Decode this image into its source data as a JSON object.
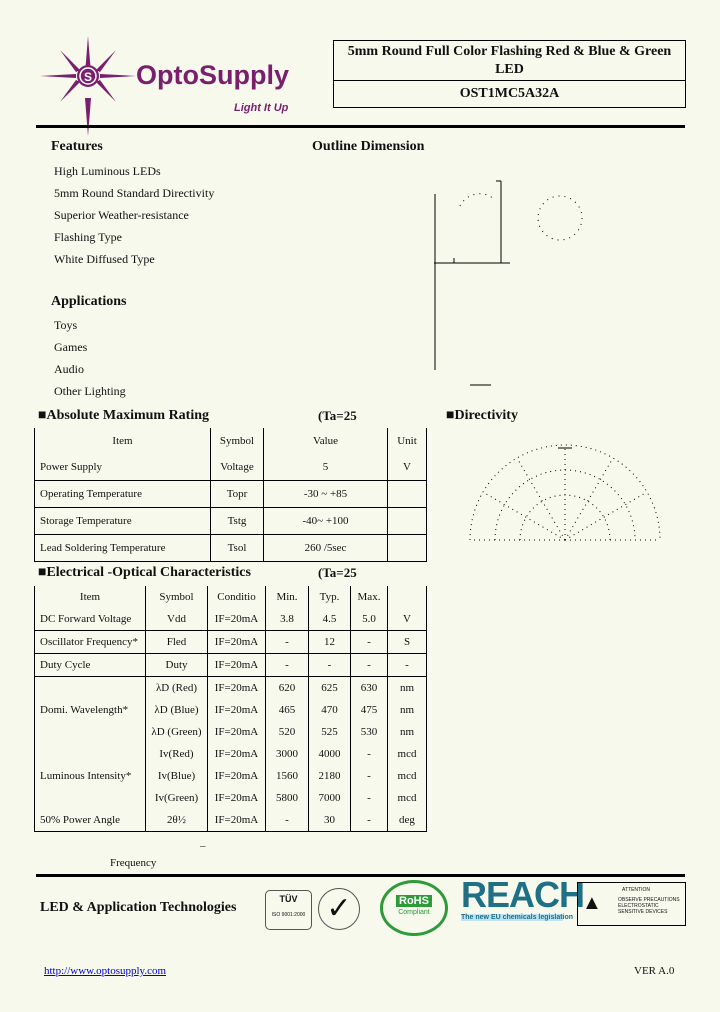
{
  "brand": {
    "name": "OptoSupply",
    "tagline": "Light It Up",
    "color": "#7a1f6e"
  },
  "header": {
    "title": "5mm Round Full Color Flashing Red & Blue & Green LED",
    "part_number": "OST1MC5A32A"
  },
  "features": {
    "heading": "Features",
    "items": [
      "High Luminous LEDs",
      "5mm Round Standard Directivity",
      "Superior Weather-resistance",
      "Flashing Type",
      "White Diffused Type"
    ]
  },
  "applications": {
    "heading": "Applications",
    "items": [
      "Toys",
      "Games",
      "Audio",
      "Other Lighting"
    ]
  },
  "outline": {
    "heading": "Outline Dimension"
  },
  "directivity": {
    "heading": "■Directivity"
  },
  "abs_max": {
    "heading": "■Absolute Maximum Rating",
    "condition": "(Ta=25",
    "headers": [
      "Item",
      "Symbol",
      "Value",
      "Unit"
    ],
    "rows": [
      [
        "Power Supply",
        "Voltage",
        "5",
        "V"
      ],
      [
        "Operating Temperature",
        "Topr",
        "-30 ~ +85",
        ""
      ],
      [
        "Storage Temperature",
        "Tstg",
        "-40~ +100",
        ""
      ],
      [
        "Lead Soldering Temperature",
        "Tsol",
        "260 /5sec",
        ""
      ]
    ]
  },
  "eo": {
    "heading": "■Electrical -Optical Characteristics",
    "condition": "(Ta=25",
    "headers": [
      "Item",
      "Symbol",
      "Conditio",
      "Min.",
      "Typ.",
      "Max.",
      ""
    ],
    "rows": [
      [
        "DC Forward Voltage",
        "Vdd",
        "IF=20mA",
        "3.8",
        "4.5",
        "5.0",
        "V"
      ],
      [
        "Oscillator Frequency*",
        "Fled",
        "IF=20mA",
        "-",
        "12",
        "-",
        "S"
      ],
      [
        "Duty Cycle",
        "Duty",
        "IF=20mA",
        "-",
        "-",
        "-",
        "-"
      ],
      [
        "Domi. Wavelength*",
        "λD (Red)",
        "IF=20mA",
        "620",
        "625",
        "630",
        "nm"
      ],
      [
        "",
        "λD (Blue)",
        "IF=20mA",
        "465",
        "470",
        "475",
        "nm"
      ],
      [
        "",
        "λD (Green)",
        "IF=20mA",
        "520",
        "525",
        "530",
        "nm"
      ],
      [
        "Luminous Intensity*",
        "Iv(Red)",
        "IF=20mA",
        "3000",
        "4000",
        "-",
        "mcd"
      ],
      [
        "",
        "Iv(Blue)",
        "IF=20mA",
        "1560",
        "2180",
        "-",
        "mcd"
      ],
      [
        "",
        "Iv(Green)",
        "IF=20mA",
        "5800",
        "7000",
        "-",
        "mcd"
      ],
      [
        "50% Power Angle",
        "2θ½",
        "IF=20mA",
        "-",
        "30",
        "-",
        "deg"
      ]
    ]
  },
  "note": {
    "frequency_label": "Frequency"
  },
  "footer": {
    "company": "LED & Application Technologies",
    "url": "http://www.optosupply.com",
    "version": "VER A.0",
    "logos": {
      "tuv": "TÜV",
      "iso": "ISO 9001:2000",
      "rohs": "RoHS",
      "rohs_sub": "Compliant",
      "reach": "REACH",
      "reach_sub": "The new EU chemicals legislation",
      "esd_title": "ATTENTION",
      "esd_text": "OBSERVE PRECAUTIONS ELECTROSTATIC SENSITIVE DEVICES"
    },
    "reach_color": "#1f6f86",
    "rohs_color": "#2e9a3a"
  }
}
